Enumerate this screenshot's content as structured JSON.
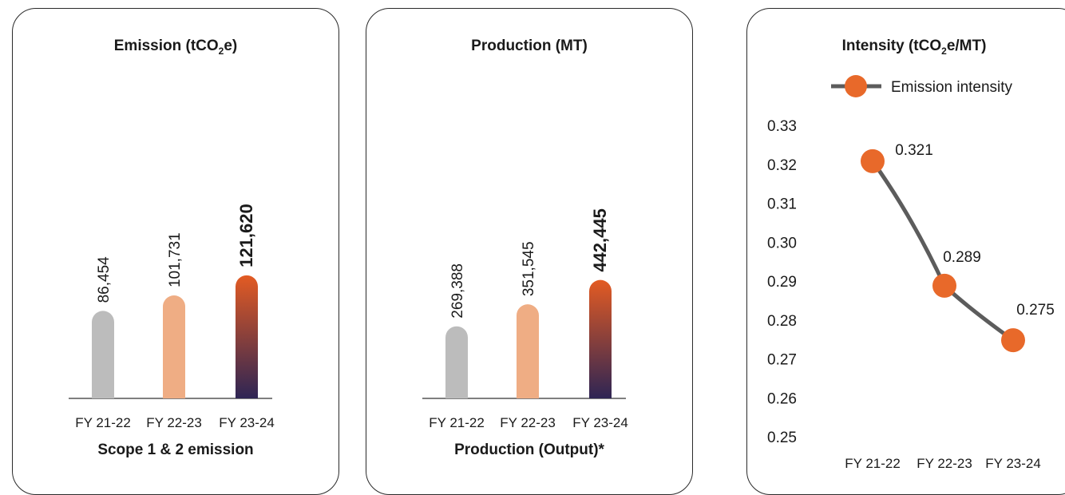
{
  "colors": {
    "gray_bar": "#bcbcbc",
    "peach_bar": "#efad84",
    "gradient_top": "#e35b23",
    "gradient_bottom": "#2e2554",
    "line": "#5c5c5c",
    "marker": "#e8692a"
  },
  "chart_data": [
    {
      "type": "bar",
      "title": "Emission (tCO2e)",
      "title_parts": {
        "pre": "Emission (tCO",
        "sub": "2",
        "post": "e)"
      },
      "caption": "Scope 1 & 2 emission",
      "categories": [
        "FY 21-22",
        "FY 22-23",
        "FY 23-24"
      ],
      "values": [
        86454,
        101731,
        121620
      ],
      "value_labels": [
        "86,454",
        "101,731",
        "121,620"
      ],
      "highlight_last": true,
      "grid": false
    },
    {
      "type": "bar",
      "title": "Production (MT)",
      "caption": "Production (Output)*",
      "categories": [
        "FY 21-22",
        "FY 22-23",
        "FY 23-24"
      ],
      "values": [
        269388,
        351545,
        442445
      ],
      "value_labels": [
        "269,388",
        "351,545",
        "442,445"
      ],
      "highlight_last": true,
      "grid": false
    },
    {
      "type": "line",
      "title": "Intensity (tCO2e/MT)",
      "title_parts": {
        "pre": "Intensity (tCO",
        "sub": "2",
        "post": "e/MT)"
      },
      "series": [
        {
          "name": "Emission intensity",
          "values": [
            0.321,
            0.289,
            0.275
          ]
        }
      ],
      "categories": [
        "FY 21-22",
        "FY 22-23",
        "FY 23-24"
      ],
      "value_labels": [
        "0.321",
        "0.289",
        "0.275"
      ],
      "yticks": [
        "0.33",
        "0.32",
        "0.31",
        "0.30",
        "0.29",
        "0.28",
        "0.27",
        "0.26",
        "0.25"
      ],
      "ylim": [
        0.25,
        0.33
      ],
      "legend": "top-right",
      "grid": false
    }
  ]
}
